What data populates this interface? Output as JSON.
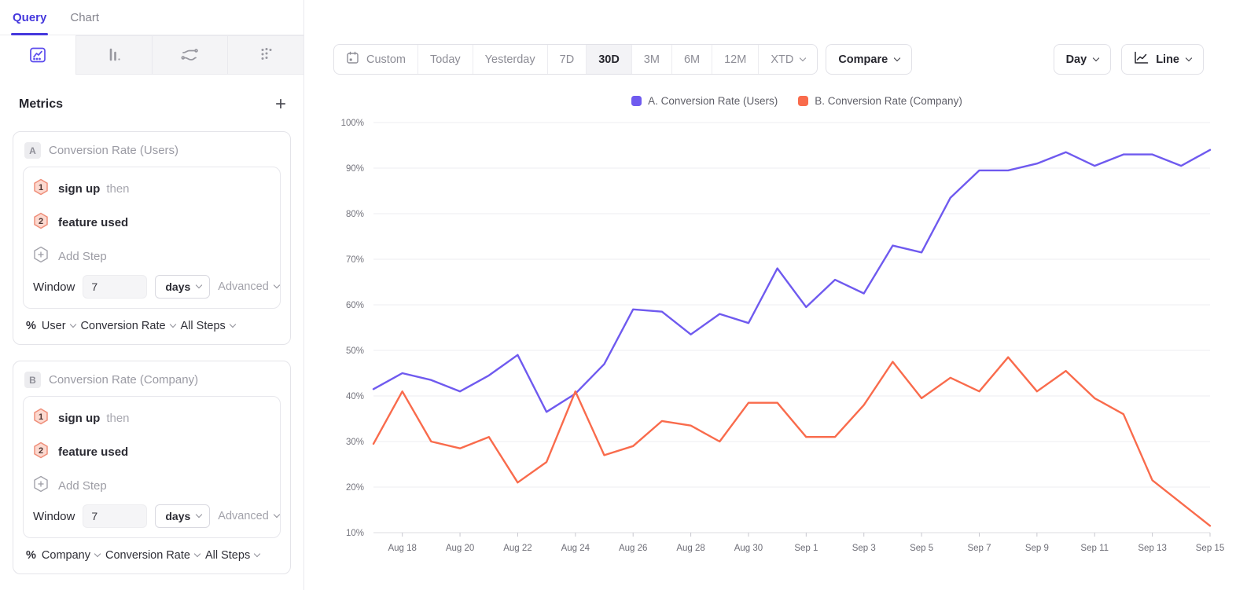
{
  "sidebar": {
    "tabs": [
      {
        "label": "Query",
        "active": true
      },
      {
        "label": "Chart",
        "active": false
      }
    ],
    "chart_type_tabs": [
      {
        "icon": "insights-line-chart-icon",
        "active": true
      },
      {
        "icon": "bar-chart-icon",
        "active": false
      },
      {
        "icon": "flows-icon",
        "active": false
      },
      {
        "icon": "scatter-dots-icon",
        "active": false
      }
    ],
    "metrics": {
      "title": "Metrics",
      "add_label": "+",
      "cards": [
        {
          "badge": "A",
          "title": "Conversion Rate (Users)",
          "steps": [
            {
              "num": "1",
              "label": "sign up",
              "suffix": "then"
            },
            {
              "num": "2",
              "label": "feature used",
              "suffix": ""
            }
          ],
          "add_step_label": "Add Step",
          "window": {
            "label": "Window",
            "value": "7",
            "unit": "days",
            "advanced_label": "Advanced"
          },
          "measure": {
            "prefix": "%",
            "entity": "User",
            "metric": "Conversion Rate",
            "steps": "All Steps"
          }
        },
        {
          "badge": "B",
          "title": "Conversion Rate (Company)",
          "steps": [
            {
              "num": "1",
              "label": "sign up",
              "suffix": "then"
            },
            {
              "num": "2",
              "label": "feature used",
              "suffix": ""
            }
          ],
          "add_step_label": "Add Step",
          "window": {
            "label": "Window",
            "value": "7",
            "unit": "days",
            "advanced_label": "Advanced"
          },
          "measure": {
            "prefix": "%",
            "entity": "Company",
            "metric": "Conversion Rate",
            "steps": "All Steps"
          }
        }
      ]
    }
  },
  "toolbar": {
    "date_ranges": [
      {
        "label": "Custom",
        "icon": "calendar-icon",
        "active": false
      },
      {
        "label": "Today",
        "active": false
      },
      {
        "label": "Yesterday",
        "active": false
      },
      {
        "label": "7D",
        "active": false
      },
      {
        "label": "30D",
        "active": true
      },
      {
        "label": "3M",
        "active": false
      },
      {
        "label": "6M",
        "active": false
      },
      {
        "label": "12M",
        "active": false
      },
      {
        "label": "XTD",
        "active": false,
        "chevron": true
      }
    ],
    "compare_label": "Compare",
    "granularity_label": "Day",
    "chart_type_label": "Line"
  },
  "chart_data": {
    "type": "line",
    "x": [
      "Aug 17",
      "Aug 18",
      "Aug 19",
      "Aug 20",
      "Aug 21",
      "Aug 22",
      "Aug 23",
      "Aug 24",
      "Aug 25",
      "Aug 26",
      "Aug 27",
      "Aug 28",
      "Aug 29",
      "Aug 30",
      "Aug 31",
      "Sep 1",
      "Sep 2",
      "Sep 3",
      "Sep 4",
      "Sep 5",
      "Sep 6",
      "Sep 7",
      "Sep 8",
      "Sep 9",
      "Sep 10",
      "Sep 11",
      "Sep 12",
      "Sep 13",
      "Sep 14",
      "Sep 15"
    ],
    "x_tick_every": 2,
    "x_tick_start_index": 1,
    "series": [
      {
        "name": "A. Conversion Rate (Users)",
        "color": "#6f5aef",
        "values": [
          41.5,
          45,
          43.5,
          41,
          44.5,
          49,
          36.5,
          40.5,
          47,
          59,
          58.5,
          53.5,
          58,
          56,
          68,
          59.5,
          65.5,
          62.5,
          73,
          71.5,
          83.5,
          89.5,
          89.5,
          91,
          93.5,
          90.5,
          93,
          93,
          90.5,
          94
        ]
      },
      {
        "name": "B. Conversion Rate (Company)",
        "color": "#f96b4c",
        "values": [
          29.5,
          41,
          30,
          28.5,
          31,
          21,
          25.5,
          41,
          27,
          29,
          34.5,
          33.5,
          30,
          38.5,
          38.5,
          31,
          31,
          38,
          47.5,
          39.5,
          44,
          41,
          48.5,
          41,
          45.5,
          39.5,
          36,
          21.5,
          16.5,
          11.5
        ]
      }
    ],
    "y_ticks": [
      "100%",
      "90%",
      "80%",
      "70%",
      "60%",
      "50%",
      "40%",
      "30%",
      "20%",
      "10%"
    ],
    "ylim": [
      10,
      100
    ],
    "grid": true,
    "legend_position": "top-center",
    "title": "",
    "xlabel": "",
    "ylabel": ""
  }
}
